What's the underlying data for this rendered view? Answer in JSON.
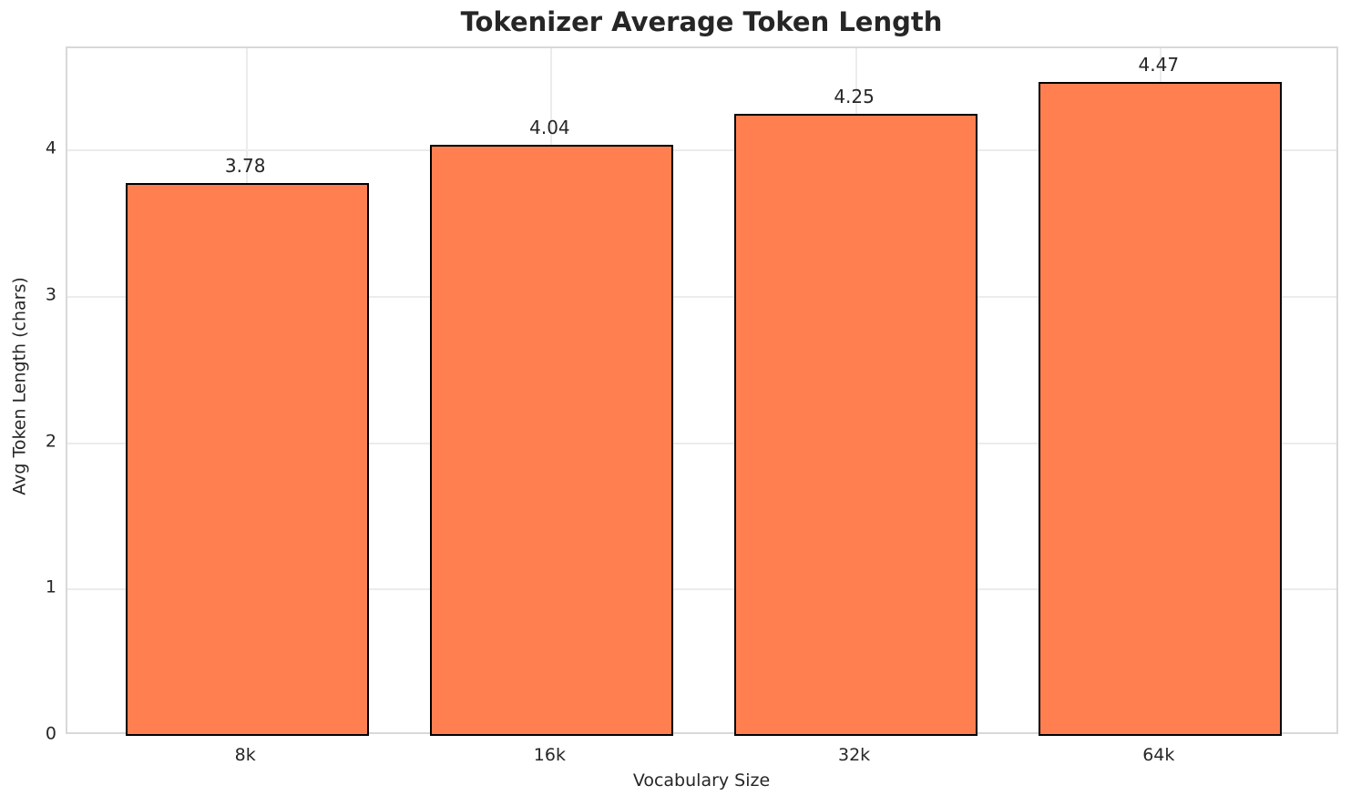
{
  "chart_data": {
    "type": "bar",
    "title": "Tokenizer Average Token Length",
    "xlabel": "Vocabulary Size",
    "ylabel": "Avg Token Length (chars)",
    "categories": [
      "8k",
      "16k",
      "32k",
      "64k"
    ],
    "values": [
      3.78,
      4.04,
      4.25,
      4.47
    ],
    "bar_labels": [
      "3.78",
      "4.04",
      "4.25",
      "4.47"
    ],
    "yticks": [
      "0",
      "1",
      "2",
      "3",
      "4"
    ],
    "ytick_values": [
      0,
      1,
      2,
      3,
      4
    ],
    "ylim": [
      0,
      4.7
    ],
    "grid": true,
    "legend": "none",
    "bar_color": "#FF7F50",
    "bar_edge_color": "#000000",
    "grid_color": "#ECECEC",
    "spine_color": "#D8D8D8",
    "text_color": "#262626",
    "background_color": "#FFFFFF"
  }
}
